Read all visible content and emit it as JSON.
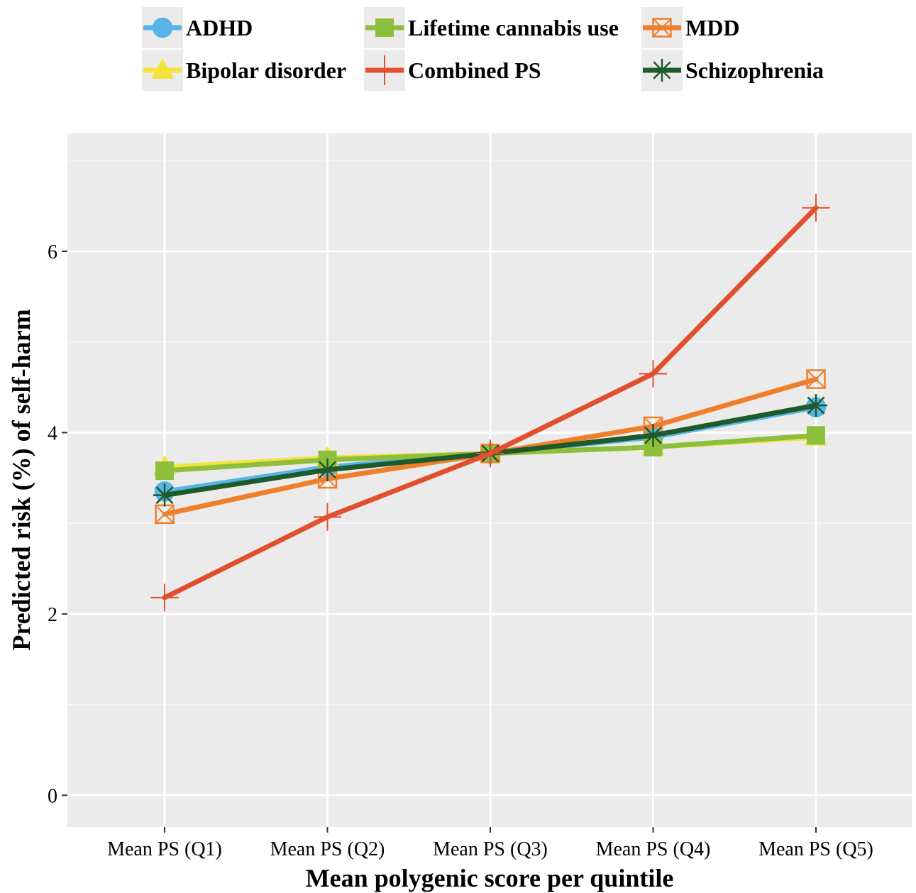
{
  "chart_data": {
    "type": "line",
    "xlabel": "Mean polygenic score per quintile",
    "ylabel": "Predicted risk (%) of self-harm",
    "categories": [
      "Mean PS (Q1)",
      "Mean PS (Q2)",
      "Mean PS (Q3)",
      "Mean PS (Q4)",
      "Mean PS (Q5)"
    ],
    "yticks": [
      0,
      2,
      4,
      6
    ],
    "ylim": [
      -0.35,
      7.3
    ],
    "grid": true,
    "legend_position": "top",
    "series": [
      {
        "name": "ADHD",
        "color": "#56B4E9",
        "marker": "circle",
        "values": [
          3.35,
          3.62,
          3.77,
          3.95,
          4.28
        ]
      },
      {
        "name": "Bipolar disorder",
        "color": "#F5E23A",
        "marker": "triangle",
        "values": [
          3.62,
          3.72,
          3.77,
          3.84,
          3.95
        ]
      },
      {
        "name": "Lifetime cannabis use",
        "color": "#8DBE3C",
        "marker": "square",
        "values": [
          3.58,
          3.7,
          3.77,
          3.84,
          3.97
        ]
      },
      {
        "name": "Combined PS",
        "color": "#E0502E",
        "marker": "plus",
        "values": [
          2.18,
          3.07,
          3.77,
          4.65,
          6.48
        ]
      },
      {
        "name": "MDD",
        "color": "#F07F2C",
        "marker": "square-cross",
        "values": [
          3.1,
          3.49,
          3.77,
          4.07,
          4.59
        ]
      },
      {
        "name": "Schizophrenia",
        "color": "#1F5A2A",
        "marker": "asterisk",
        "values": [
          3.31,
          3.59,
          3.77,
          3.97,
          4.3
        ]
      }
    ]
  },
  "legend": {
    "items": [
      {
        "label": "ADHD"
      },
      {
        "label": "Lifetime cannabis use"
      },
      {
        "label": "MDD"
      },
      {
        "label": "Bipolar disorder"
      },
      {
        "label": "Combined PS"
      },
      {
        "label": "Schizophrenia"
      }
    ]
  }
}
